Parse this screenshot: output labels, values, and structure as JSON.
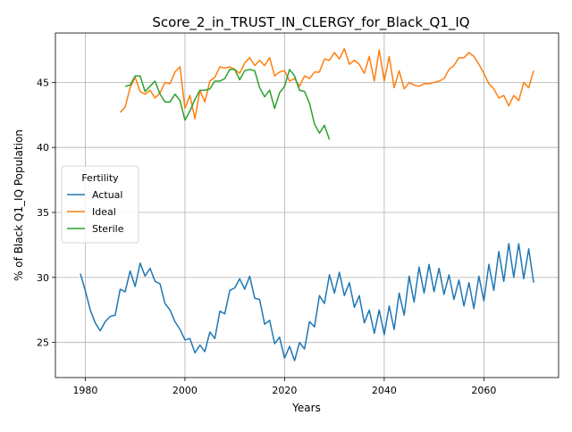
{
  "chart_data": {
    "type": "line",
    "title": "Score_2_in_TRUST_IN_CLERGY_for_Black_Q1_IQ",
    "xlabel": "Years",
    "ylabel": "% of Black Q1_IQ Population",
    "xlim": [
      1974,
      2075
    ],
    "ylim": [
      22.3,
      48.8
    ],
    "xticks": [
      1980,
      2000,
      2020,
      2040,
      2060
    ],
    "yticks": [
      25,
      30,
      35,
      40,
      45
    ],
    "grid": true,
    "legend": {
      "title": "Fertility",
      "placement": "center-left"
    },
    "series": [
      {
        "name": "Actual",
        "color": "#1f77b4",
        "x": [
          1979,
          1980,
          1981,
          1982,
          1983,
          1984,
          1985,
          1986,
          1987,
          1988,
          1989,
          1990,
          1991,
          1992,
          1993,
          1994,
          1995,
          1996,
          1997,
          1998,
          1999,
          2000,
          2001,
          2002,
          2003,
          2004,
          2005,
          2006,
          2007,
          2008,
          2009,
          2010,
          2011,
          2012,
          2013,
          2014,
          2015,
          2016,
          2017,
          2018,
          2019,
          2020,
          2021,
          2022,
          2023,
          2024,
          2025,
          2026,
          2027,
          2028,
          2029,
          2030,
          2031,
          2032,
          2033,
          2034,
          2035,
          2036,
          2037,
          2038,
          2039,
          2040,
          2041,
          2042,
          2043,
          2044,
          2045,
          2046,
          2047,
          2048,
          2049,
          2050,
          2051,
          2052,
          2053,
          2054,
          2055,
          2056,
          2057,
          2058,
          2059,
          2060,
          2061,
          2062,
          2063,
          2064,
          2065,
          2066,
          2067,
          2068,
          2069,
          2070
        ],
        "values": [
          30.3,
          29.0,
          27.5,
          26.5,
          25.9,
          26.6,
          27.0,
          27.1,
          29.1,
          28.9,
          30.5,
          29.3,
          31.1,
          30.1,
          30.7,
          29.7,
          29.5,
          28.0,
          27.5,
          26.6,
          26.0,
          25.2,
          25.3,
          24.2,
          24.8,
          24.3,
          25.8,
          25.3,
          27.4,
          27.2,
          29.0,
          29.2,
          29.9,
          29.1,
          30.1,
          28.4,
          28.3,
          26.4,
          26.7,
          24.9,
          25.4,
          23.8,
          24.7,
          23.6,
          25.0,
          24.5,
          26.6,
          26.2,
          28.6,
          28.0,
          30.2,
          28.8,
          30.4,
          28.6,
          29.6,
          27.7,
          28.6,
          26.5,
          27.5,
          25.7,
          27.5,
          25.6,
          27.8,
          26.0,
          28.8,
          27.1,
          30.1,
          28.1,
          30.8,
          28.8,
          31.0,
          28.9,
          30.7,
          28.7,
          30.2,
          28.3,
          29.8,
          27.8,
          29.6,
          27.6,
          30.1,
          28.2,
          31.0,
          29.0,
          32.0,
          29.7,
          32.6,
          30.0,
          32.6,
          29.9,
          32.2,
          29.6
        ]
      },
      {
        "name": "Ideal",
        "color": "#ff7f0e",
        "x": [
          1987,
          1988,
          1989,
          1990,
          1991,
          1992,
          1993,
          1994,
          1995,
          1996,
          1997,
          1998,
          1999,
          2000,
          2001,
          2002,
          2003,
          2004,
          2005,
          2006,
          2007,
          2008,
          2009,
          2010,
          2011,
          2012,
          2013,
          2014,
          2015,
          2016,
          2017,
          2018,
          2019,
          2020,
          2021,
          2022,
          2023,
          2024,
          2025,
          2026,
          2027,
          2028,
          2029,
          2030,
          2031,
          2032,
          2033,
          2034,
          2035,
          2036,
          2037,
          2038,
          2039,
          2040,
          2041,
          2042,
          2043,
          2044,
          2045,
          2046,
          2047,
          2048,
          2049,
          2050,
          2051,
          2052,
          2053,
          2054,
          2055,
          2056,
          2057,
          2058,
          2059,
          2060,
          2061,
          2062,
          2063,
          2064,
          2065,
          2066,
          2067,
          2068,
          2069,
          2070
        ],
        "values": [
          42.7,
          43.1,
          44.6,
          45.4,
          44.3,
          44.1,
          44.4,
          43.8,
          44.2,
          45.0,
          44.9,
          45.8,
          46.2,
          43.0,
          44.0,
          42.2,
          44.4,
          43.5,
          45.1,
          45.4,
          46.2,
          46.1,
          46.2,
          46.0,
          45.7,
          46.5,
          46.9,
          46.3,
          46.7,
          46.3,
          46.9,
          45.5,
          45.8,
          45.9,
          45.1,
          45.3,
          44.7,
          45.5,
          45.3,
          45.8,
          45.8,
          46.8,
          46.7,
          47.3,
          46.8,
          47.6,
          46.4,
          46.7,
          46.4,
          45.7,
          47.0,
          45.1,
          47.5,
          45.1,
          47.0,
          44.6,
          45.9,
          44.5,
          45.0,
          44.8,
          44.7,
          44.9,
          44.9,
          45.0,
          45.1,
          45.3,
          46.0,
          46.3,
          46.9,
          46.9,
          47.3,
          47.0,
          46.4,
          45.7,
          44.9,
          44.5,
          43.8,
          44.0,
          43.2,
          44.0,
          43.6,
          45.0,
          44.6,
          45.9
        ]
      },
      {
        "name": "Sterile",
        "color": "#2ca02c",
        "x": [
          1988,
          1989,
          1990,
          1991,
          1992,
          1993,
          1994,
          1995,
          1996,
          1997,
          1998,
          1999,
          2000,
          2001,
          2002,
          2003,
          2004,
          2005,
          2006,
          2007,
          2008,
          2009,
          2010,
          2011,
          2012,
          2013,
          2014,
          2015,
          2016,
          2017,
          2018,
          2019,
          2020,
          2021,
          2022,
          2023,
          2024,
          2025,
          2026,
          2027,
          2028,
          2029
        ],
        "values": [
          44.7,
          44.8,
          45.5,
          45.5,
          44.3,
          44.7,
          45.1,
          44.1,
          43.5,
          43.5,
          44.1,
          43.6,
          42.1,
          42.8,
          43.7,
          44.4,
          44.4,
          44.5,
          45.1,
          45.1,
          45.3,
          46.0,
          46.0,
          45.2,
          45.9,
          46.0,
          45.9,
          44.6,
          43.9,
          44.4,
          43.0,
          44.2,
          44.7,
          46.0,
          45.5,
          44.4,
          44.3,
          43.4,
          41.8,
          41.1,
          41.7,
          40.6
        ]
      }
    ]
  }
}
